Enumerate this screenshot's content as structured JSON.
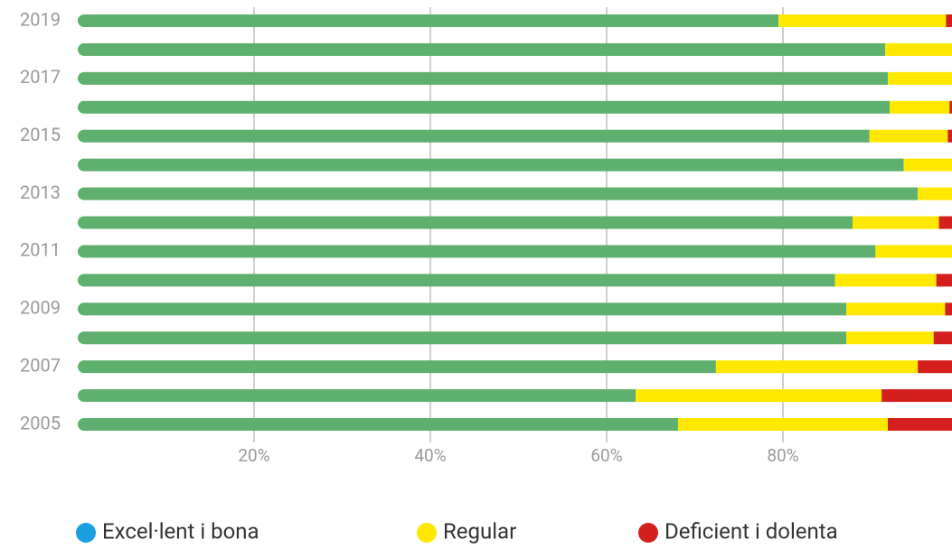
{
  "chart_data": {
    "type": "stacked-barh",
    "categories": [
      "2019",
      null,
      "2017",
      null,
      "2015",
      null,
      "2013",
      null,
      "2011",
      null,
      "2009",
      null,
      "2007",
      null,
      "2005"
    ],
    "series": [
      {
        "name": "Excel·lent i bona",
        "color": "#5fb06e",
        "legend_color": "#1a9fe0",
        "values": [
          79.5,
          91.6,
          91.9,
          92.1,
          89.8,
          93.7,
          95.3,
          87.9,
          90.5,
          85.9,
          87.2,
          87.2,
          72.4,
          63.3,
          68.1
        ]
      },
      {
        "name": "Regular",
        "color": "#ffe800",
        "values": [
          19.0,
          8.4,
          8.1,
          6.8,
          8.9,
          6.3,
          4.7,
          9.8,
          9.5,
          11.5,
          11.2,
          9.9,
          22.9,
          27.9,
          23.8
        ]
      },
      {
        "name": "Deficient i dolenta",
        "color": "#d41f1f",
        "values": [
          1.5,
          0,
          0,
          1.1,
          1.3,
          0,
          0,
          2.3,
          0,
          2.6,
          1.6,
          2.9,
          4.7,
          8.8,
          8.1
        ]
      }
    ],
    "xlim": [
      0,
      100
    ],
    "xticks": [
      {
        "value": 20,
        "label": "20%"
      },
      {
        "value": 40,
        "label": "40%"
      },
      {
        "value": 60,
        "label": "60%"
      },
      {
        "value": 80,
        "label": "80%"
      }
    ],
    "grid": true
  }
}
